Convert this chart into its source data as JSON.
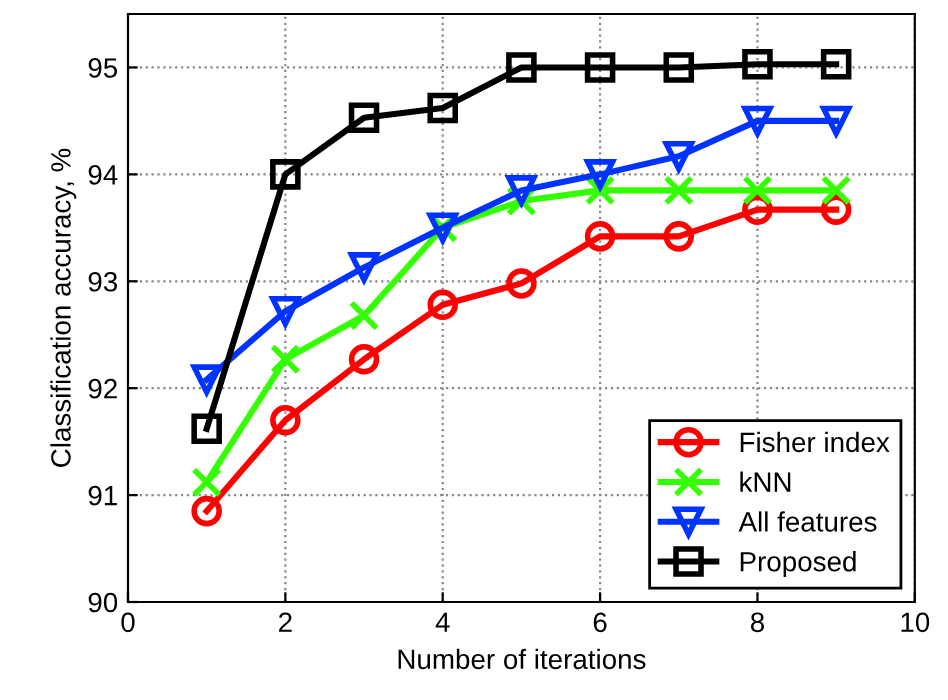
{
  "chart_data": {
    "type": "line",
    "xlabel": "Number of iterations",
    "ylabel": "Classification accuracy, %",
    "x": [
      1,
      2,
      3,
      4,
      5,
      6,
      7,
      8,
      9
    ],
    "xlim": [
      0,
      10
    ],
    "xticks": [
      0,
      2,
      4,
      6,
      8,
      10
    ],
    "ylim": [
      90,
      95.5
    ],
    "yticks": [
      90,
      91,
      92,
      93,
      94,
      95
    ],
    "grid": true,
    "legend": "bottom right",
    "series": [
      {
        "name": "Fisher index",
        "color": "#ff0000",
        "marker": "circle",
        "values": [
          90.85,
          91.7,
          92.27,
          92.78,
          92.98,
          93.42,
          93.42,
          93.67,
          93.67
        ]
      },
      {
        "name": "kNN",
        "color": "#33ff00",
        "marker": "cross",
        "values": [
          91.12,
          92.27,
          92.68,
          93.5,
          93.75,
          93.85,
          93.85,
          93.85,
          93.85
        ]
      },
      {
        "name": "All features",
        "color": "#0033ff",
        "marker": "triangle",
        "values": [
          92.08,
          92.72,
          93.13,
          93.5,
          93.85,
          94.0,
          94.17,
          94.5,
          94.5
        ]
      },
      {
        "name": "Proposed",
        "color": "#000000",
        "marker": "square",
        "values": [
          91.62,
          94.0,
          94.53,
          94.62,
          95.0,
          95.0,
          95.0,
          95.03,
          95.03
        ]
      }
    ]
  }
}
